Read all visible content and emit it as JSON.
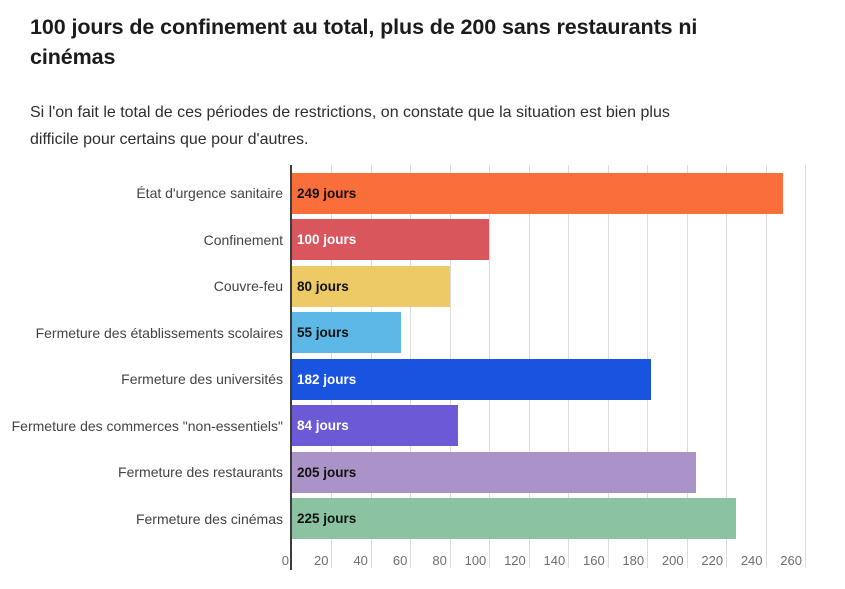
{
  "header": {
    "title_lines": [
      "100 jours de confinement au total, plus de 200 sans restaurants ni",
      "cinémas"
    ],
    "subtitle_lines": [
      "Si l'on fait le total de ces périodes de restrictions, on constate que la situation est bien plus",
      "difficile pour certains que pour d'autres."
    ]
  },
  "chart_data": {
    "type": "bar",
    "orientation": "horizontal",
    "title": "100 jours de confinement au total, plus de 200 sans restaurants ni cinémas",
    "subtitle": "Si l'on fait le total de ces périodes de restrictions, on constate que la situation est bien plus difficile pour certains que pour d'autres.",
    "categories": [
      "État d'urgence sanitaire",
      "Confinement",
      "Couvre-feu",
      "Fermeture des établissements scolaires",
      "Fermeture des universités",
      "Fermeture des commerces \"non-essentiels\"",
      "Fermeture des restaurants",
      "Fermeture des cinémas"
    ],
    "values": [
      249,
      100,
      80,
      55,
      182,
      84,
      205,
      225
    ],
    "unit": "jours",
    "value_labels": [
      "249 jours",
      "100 jours",
      "80 jours",
      "55 jours",
      "182 jours",
      "84 jours",
      "205 jours",
      "225 jours"
    ],
    "bar_colors": [
      "#FA6E3A",
      "#D9575C",
      "#EECA66",
      "#5CB8E6",
      "#1854DF",
      "#6C59D6",
      "#AC93C7",
      "#8BC3A2"
    ],
    "value_label_colors": [
      "#111111",
      "#ffffff",
      "#111111",
      "#111111",
      "#ffffff",
      "#ffffff",
      "#111111",
      "#111111"
    ],
    "xlabel": "",
    "ylabel": "",
    "xlim": [
      0,
      260
    ],
    "xticks": [
      0,
      20,
      40,
      60,
      80,
      100,
      120,
      140,
      160,
      180,
      200,
      220,
      240,
      260
    ],
    "grid": true,
    "legend": false,
    "colors": {
      "gridline": "#dcdcdc",
      "axis_line": "#3d3d3d",
      "category_label": "#434343",
      "tick_label": "#6e6e6e",
      "title": "#1b1b1b",
      "subtitle": "#2e2e2e"
    }
  }
}
